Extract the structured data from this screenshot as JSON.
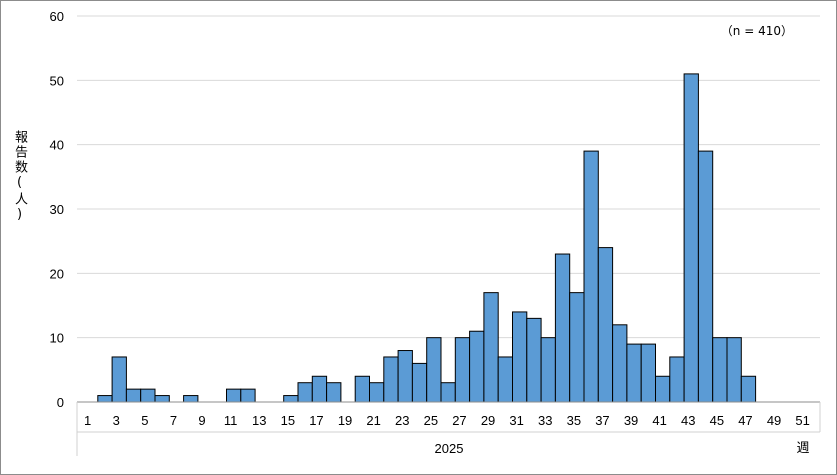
{
  "chart_data": {
    "type": "bar",
    "ylabel": "報告数(人)",
    "xlabel_unit": "週",
    "year_label": "2025",
    "annotation": "（n = 410）",
    "ylim": [
      0,
      60
    ],
    "yticks": [
      0,
      10,
      20,
      30,
      40,
      50,
      60
    ],
    "xticks": [
      1,
      3,
      5,
      7,
      9,
      11,
      13,
      15,
      17,
      19,
      21,
      23,
      25,
      27,
      29,
      31,
      33,
      35,
      37,
      39,
      41,
      43,
      45,
      47,
      49,
      51
    ],
    "categories": [
      1,
      2,
      3,
      4,
      5,
      6,
      7,
      8,
      9,
      10,
      11,
      12,
      13,
      14,
      15,
      16,
      17,
      18,
      19,
      20,
      21,
      22,
      23,
      24,
      25,
      26,
      27,
      28,
      29,
      30,
      31,
      32,
      33,
      34,
      35,
      36,
      37,
      38,
      39,
      40,
      41,
      42,
      43,
      44,
      45,
      46,
      47,
      48,
      49,
      50,
      51,
      52
    ],
    "values": [
      0,
      1,
      7,
      2,
      2,
      1,
      0,
      1,
      0,
      0,
      2,
      2,
      0,
      0,
      1,
      3,
      4,
      3,
      0,
      4,
      3,
      7,
      8,
      6,
      10,
      3,
      10,
      11,
      17,
      7,
      14,
      13,
      10,
      23,
      17,
      39,
      24,
      12,
      9,
      9,
      4,
      7,
      51,
      39,
      10,
      10,
      4,
      0,
      0,
      0,
      0,
      0
    ],
    "grid": true,
    "bar_color": "#5b9bd5",
    "bar_edge_color": "#000000",
    "grid_color": "#d9d9d9"
  }
}
